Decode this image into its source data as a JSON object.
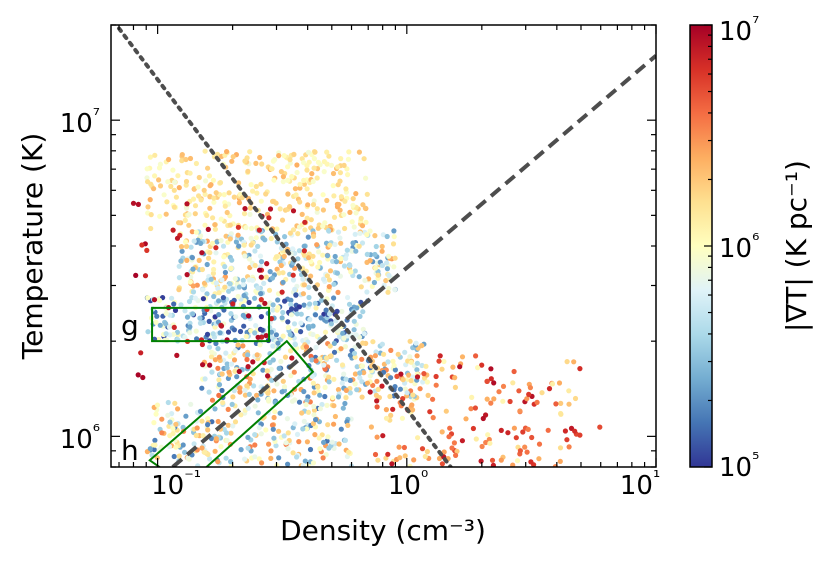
{
  "chart_data": {
    "type": "scatter",
    "title": "",
    "xlabel": "Density (cm⁻³)",
    "ylabel": "Temperature (K)",
    "xscale": "log",
    "yscale": "log",
    "xlim": [
      0.065,
      10
    ],
    "ylim": [
      800000,
      20000000
    ],
    "x_tick_labels": [
      "10⁻¹",
      "10⁰",
      "10¹"
    ],
    "y_tick_labels": [
      "10⁶",
      "10⁷"
    ],
    "colorbar": {
      "label": "|∇T| (K pc⁻¹)",
      "scale": "log",
      "range": [
        100000,
        10000000
      ],
      "tick_labels": [
        "10⁵",
        "10⁶",
        "10⁷"
      ],
      "colormap": [
        "#313695",
        "#4575b4",
        "#74add1",
        "#abd9e9",
        "#e0f3f8",
        "#ffffbf",
        "#fee090",
        "#fdae61",
        "#f46d43",
        "#d73027",
        "#a50026"
      ]
    },
    "reference_lines": [
      {
        "name": "dotted",
        "style": "dotted",
        "color": "#4d4d4d",
        "points": [
          [
            0.07,
            19500000
          ],
          [
            1.5,
            800000
          ]
        ]
      },
      {
        "name": "dashed",
        "style": "dashed",
        "color": "#4d4d4d",
        "points": [
          [
            0.115,
            800000
          ],
          [
            10,
            16000000
          ]
        ]
      }
    ],
    "regions": [
      {
        "label": "g",
        "shape": "rectangle",
        "x_range": [
          0.095,
          0.28
        ],
        "y_range": [
          2000000,
          2550000
        ],
        "color": "#008000"
      },
      {
        "label": "h",
        "shape": "tilted-rectangle",
        "corners": [
          [
            0.093,
            840000
          ],
          [
            0.33,
            2000000
          ],
          [
            0.42,
            1600000
          ],
          [
            0.13,
            700000
          ]
        ],
        "color": "#008000"
      }
    ],
    "point_clusters": [
      {
        "name": "hot-top-band",
        "x_range": [
          0.09,
          0.7
        ],
        "y_range": [
          4500000,
          8000000
        ],
        "gradient_range": [
          800000,
          2500000
        ],
        "count": 320
      },
      {
        "name": "upper-middle-band",
        "x_range": [
          0.12,
          0.9
        ],
        "y_range": [
          2800000,
          4500000
        ],
        "gradient_range": [
          200000,
          3000000
        ],
        "count": 380
      },
      {
        "name": "strip-band-g",
        "x_range": [
          0.09,
          0.7
        ],
        "y_range": [
          2000000,
          2800000
        ],
        "gradient_range": [
          100000,
          1200000
        ],
        "count": 300
      },
      {
        "name": "mid-band",
        "x_range": [
          0.15,
          1.2
        ],
        "y_range": [
          1300000,
          2000000
        ],
        "gradient_range": [
          150000,
          4000000
        ],
        "count": 320
      },
      {
        "name": "low-band-h",
        "x_range": [
          0.09,
          0.6
        ],
        "y_range": [
          800000,
          1300000
        ],
        "gradient_range": [
          150000,
          3500000
        ],
        "count": 260
      },
      {
        "name": "high-density-tail",
        "x_range": [
          0.7,
          5
        ],
        "y_range": [
          800000,
          1800000
        ],
        "gradient_range": [
          1000000,
          9000000
        ],
        "count": 180
      },
      {
        "name": "high-gradient-outliers",
        "x_range": [
          0.08,
          0.4
        ],
        "y_range": [
          1500000,
          5500000
        ],
        "gradient_range": [
          6000000,
          10000000
        ],
        "count": 60
      },
      {
        "name": "sparse-outliers",
        "x_range": [
          4,
          9
        ],
        "y_range": [
          850000,
          1200000
        ],
        "gradient_range": [
          5000000,
          10000000
        ],
        "count": 3
      }
    ]
  }
}
